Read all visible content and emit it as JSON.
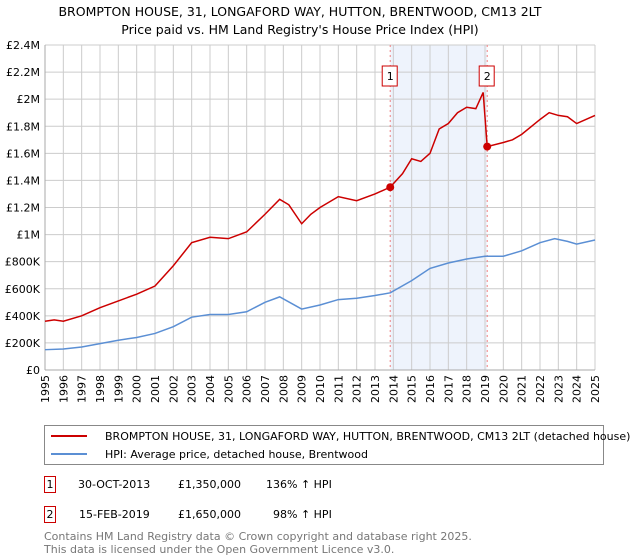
{
  "chart_data": {
    "type": "line",
    "title": "BROMPTON HOUSE, 31, LONGAFORD WAY, HUTTON, BRENTWOOD, CM13 2LT",
    "subtitle": "Price paid vs. HM Land Registry's House Price Index (HPI)",
    "xlim": [
      1995,
      2025
    ],
    "ylim": [
      0,
      2400000
    ],
    "x_ticks": [
      "1995",
      "1996",
      "1997",
      "1998",
      "1999",
      "2000",
      "2001",
      "2002",
      "2003",
      "2004",
      "2005",
      "2006",
      "2007",
      "2008",
      "2009",
      "2010",
      "2011",
      "2012",
      "2013",
      "2014",
      "2015",
      "2016",
      "2017",
      "2018",
      "2019",
      "2020",
      "2021",
      "2022",
      "2023",
      "2024",
      "2025"
    ],
    "y_ticks": [
      {
        "v": 0,
        "label": "£0"
      },
      {
        "v": 200000,
        "label": "£200K"
      },
      {
        "v": 400000,
        "label": "£400K"
      },
      {
        "v": 600000,
        "label": "£600K"
      },
      {
        "v": 800000,
        "label": "£800K"
      },
      {
        "v": 1000000,
        "label": "£1M"
      },
      {
        "v": 1200000,
        "label": "£1.2M"
      },
      {
        "v": 1400000,
        "label": "£1.4M"
      },
      {
        "v": 1600000,
        "label": "£1.6M"
      },
      {
        "v": 1800000,
        "label": "£1.8M"
      },
      {
        "v": 2000000,
        "label": "£2M"
      },
      {
        "v": 2200000,
        "label": "£2.2M"
      },
      {
        "v": 2400000,
        "label": "£2.4M"
      }
    ],
    "grid": true,
    "series": [
      {
        "name": "BROMPTON HOUSE, 31, LONGAFORD WAY, HUTTON, BRENTWOOD, CM13 2LT (detached house)",
        "color": "#cc0000",
        "x": [
          1995,
          1995.5,
          1996,
          1997,
          1998,
          1999,
          2000,
          2001,
          2002,
          2003,
          2004,
          2005,
          2006,
          2007,
          2007.8,
          2008.3,
          2009,
          2009.5,
          2010,
          2011,
          2012,
          2013,
          2013.83,
          2014.5,
          2015,
          2015.5,
          2016,
          2016.5,
          2017,
          2017.5,
          2018,
          2018.5,
          2018.9,
          2019.12,
          2020,
          2020.5,
          2021,
          2022,
          2022.5,
          2023,
          2023.5,
          2024,
          2025
        ],
        "y": [
          360000,
          370000,
          360000,
          400000,
          460000,
          510000,
          560000,
          620000,
          770000,
          940000,
          980000,
          970000,
          1020000,
          1150000,
          1260000,
          1220000,
          1080000,
          1150000,
          1200000,
          1280000,
          1250000,
          1300000,
          1350000,
          1450000,
          1560000,
          1540000,
          1600000,
          1780000,
          1820000,
          1900000,
          1940000,
          1930000,
          2050000,
          1650000,
          1680000,
          1700000,
          1740000,
          1850000,
          1900000,
          1880000,
          1870000,
          1820000,
          1880000
        ]
      },
      {
        "name": "HPI: Average price, detached house, Brentwood",
        "color": "#5b8fd4",
        "x": [
          1995,
          1996,
          1997,
          1998,
          1999,
          2000,
          2001,
          2002,
          2003,
          2004,
          2005,
          2006,
          2007,
          2007.8,
          2009,
          2010,
          2011,
          2012,
          2013,
          2013.83,
          2015,
          2016,
          2017,
          2018,
          2019,
          2020,
          2021,
          2022,
          2022.8,
          2023.5,
          2024,
          2025
        ],
        "y": [
          150000,
          155000,
          170000,
          195000,
          220000,
          240000,
          270000,
          320000,
          390000,
          410000,
          410000,
          430000,
          500000,
          540000,
          450000,
          480000,
          520000,
          530000,
          550000,
          570000,
          660000,
          750000,
          790000,
          820000,
          840000,
          840000,
          880000,
          940000,
          970000,
          950000,
          930000,
          960000
        ]
      }
    ],
    "annotations": [
      {
        "label": "1",
        "x": 2013.83,
        "y": 1350000
      },
      {
        "label": "2",
        "x": 2019.12,
        "y": 1650000
      }
    ],
    "shaded_range": [
      2013.83,
      2019.12
    ],
    "legend": "below"
  },
  "transactions": [
    {
      "num": "1",
      "date": "30-OCT-2013",
      "price": "£1,350,000",
      "hpi": "136% ↑ HPI"
    },
    {
      "num": "2",
      "date": "15-FEB-2019",
      "price": "£1,650,000",
      "hpi": "98% ↑ HPI"
    }
  ],
  "footer": [
    "Contains HM Land Registry data © Crown copyright and database right 2025.",
    "This data is licensed under the Open Government Licence v3.0."
  ]
}
